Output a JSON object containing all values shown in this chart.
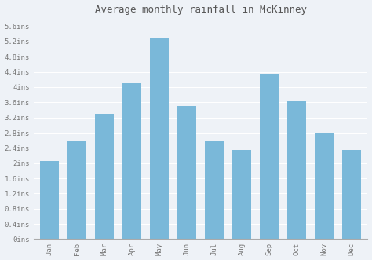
{
  "title": "Average monthly rainfall in McKinney",
  "months": [
    "Jan",
    "Feb",
    "Mar",
    "Apr",
    "May",
    "Jun",
    "Jul",
    "Aug",
    "Sep",
    "Oct",
    "Nov",
    "Dec"
  ],
  "values": [
    2.05,
    2.6,
    3.3,
    4.1,
    5.3,
    3.5,
    2.6,
    2.35,
    4.35,
    3.65,
    2.8,
    2.35
  ],
  "bar_color": "#7ab8d9",
  "background_color": "#eef2f7",
  "plot_bg_color": "#eef2f7",
  "grid_color": "#ffffff",
  "yticks": [
    0,
    0.4,
    0.8,
    1.2,
    1.6,
    2.0,
    2.4,
    2.8,
    3.2,
    3.6,
    4.0,
    4.4,
    4.8,
    5.2,
    5.6
  ],
  "ytick_labels": [
    "0ins",
    "0.4ins",
    "0.8ins",
    "1.2ins",
    "1.6ins",
    "2ins",
    "2.4ins",
    "2.8ins",
    "3.2ins",
    "3.6ins",
    "4ins",
    "4.4ins",
    "4.8ins",
    "5.2ins",
    "5.6ins"
  ],
  "ylim": [
    0,
    5.8
  ],
  "title_fontsize": 9,
  "tick_fontsize": 6.5,
  "tick_color": "#777777",
  "axis_color": "#aaaaaa",
  "title_color": "#555555",
  "bar_width": 0.7
}
